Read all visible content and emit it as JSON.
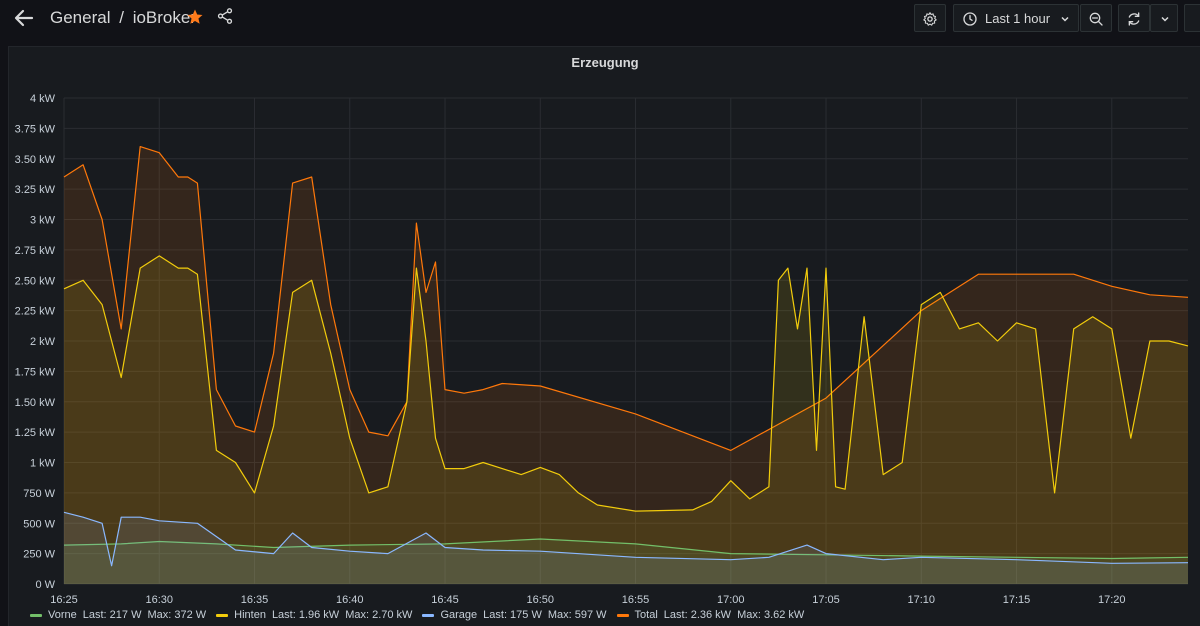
{
  "header": {
    "folder": "General",
    "separator": "/",
    "dashboard_title": "ioBroker",
    "time_range_label": "Last 1 hour",
    "icons": {
      "back": "arrow-left-icon",
      "star": "star-icon",
      "share": "share-icon",
      "settings": "gear-icon",
      "clock": "clock-icon",
      "chevron": "chevron-down-icon",
      "zoom_out": "zoom-out-icon",
      "refresh": "refresh-icon",
      "refresh_menu": "chevron-down-icon"
    },
    "star_color": "#ff7a1a"
  },
  "panel": {
    "title": "Erzeugung"
  },
  "legend": [
    {
      "name": "Vorne",
      "last": "Last: 217 W",
      "max": "Max: 372 W",
      "color": "#73bf69"
    },
    {
      "name": "Hinten",
      "last": "Last: 1.96 kW",
      "max": "Max: 2.70 kW",
      "color": "#f2cc0c"
    },
    {
      "name": "Garage",
      "last": "Last: 175 W",
      "max": "Max: 597 W",
      "color": "#8ab8ff"
    },
    {
      "name": "Total",
      "last": "Last: 2.36 kW",
      "max": "Max: 3.62 kW",
      "color": "#ff780a"
    }
  ],
  "chart_data": {
    "type": "area",
    "title": "Erzeugung",
    "y_tick_labels": [
      "0 W",
      "250 W",
      "500 W",
      "750 W",
      "1 kW",
      "1.25 kW",
      "1.50 kW",
      "1.75 kW",
      "2 kW",
      "2.25 kW",
      "2.50 kW",
      "2.75 kW",
      "3 kW",
      "3.25 kW",
      "3.50 kW",
      "3.75 kW",
      "4 kW"
    ],
    "ylim": [
      0,
      4
    ],
    "y_unit": "kW",
    "x_tick_labels": [
      "16:25",
      "16:30",
      "16:35",
      "16:40",
      "16:45",
      "16:50",
      "16:55",
      "17:00",
      "17:05",
      "17:10",
      "17:15",
      "17:20"
    ],
    "x_range": [
      "16:25",
      "17:24"
    ],
    "grid": true,
    "legend_position": "bottom",
    "series": [
      {
        "name": "Vorne",
        "color": "#73bf69",
        "x": [
          "16:25",
          "16:28",
          "16:30",
          "16:33",
          "16:36",
          "16:40",
          "16:45",
          "16:50",
          "16:55",
          "17:00",
          "17:05",
          "17:10",
          "17:15",
          "17:20",
          "17:24"
        ],
        "y": [
          0.32,
          0.33,
          0.35,
          0.33,
          0.3,
          0.32,
          0.33,
          0.37,
          0.33,
          0.25,
          0.24,
          0.23,
          0.22,
          0.21,
          0.22
        ]
      },
      {
        "name": "Hinten",
        "color": "#f2cc0c",
        "x": [
          "16:25",
          "16:26",
          "16:27",
          "16:28",
          "16:29",
          "16:30",
          "16:31",
          "16:31.5",
          "16:32",
          "16:33",
          "16:34",
          "16:35",
          "16:36",
          "16:37",
          "16:38",
          "16:39",
          "16:40",
          "16:41",
          "16:42",
          "16:43",
          "16:43.5",
          "16:44",
          "16:44.5",
          "16:45",
          "16:46",
          "16:47",
          "16:48",
          "16:49",
          "16:50",
          "16:51",
          "16:52",
          "16:53",
          "16:55",
          "16:58",
          "16:59",
          "17:00",
          "17:01",
          "17:02",
          "17:02.5",
          "17:03",
          "17:03.5",
          "17:04",
          "17:04.5",
          "17:05",
          "17:05.5",
          "17:06",
          "17:07",
          "17:08",
          "17:09",
          "17:10",
          "17:11",
          "17:12",
          "17:13",
          "17:14",
          "17:15",
          "17:16",
          "17:17",
          "17:18",
          "17:19",
          "17:20",
          "17:21",
          "17:22",
          "17:23",
          "17:24"
        ],
        "y": [
          2.43,
          2.5,
          2.3,
          1.7,
          2.6,
          2.7,
          2.6,
          2.6,
          2.55,
          1.1,
          1.0,
          0.75,
          1.3,
          2.4,
          2.5,
          1.9,
          1.2,
          0.75,
          0.8,
          1.5,
          2.6,
          2.0,
          1.2,
          0.95,
          0.95,
          1.0,
          0.95,
          0.9,
          0.96,
          0.9,
          0.75,
          0.65,
          0.6,
          0.61,
          0.68,
          0.85,
          0.7,
          0.8,
          2.5,
          2.6,
          2.1,
          2.6,
          1.1,
          2.6,
          0.8,
          0.78,
          2.2,
          0.9,
          1.0,
          2.3,
          2.4,
          2.1,
          2.15,
          2.0,
          2.15,
          2.1,
          0.75,
          2.1,
          2.2,
          2.1,
          1.2,
          2.0,
          2.0,
          1.96
        ]
      },
      {
        "name": "Garage",
        "color": "#8ab8ff",
        "x": [
          "16:25",
          "16:26",
          "16:27",
          "16:27.5",
          "16:28",
          "16:29",
          "16:30",
          "16:32",
          "16:34",
          "16:36",
          "16:37",
          "16:38",
          "16:40",
          "16:42",
          "16:44",
          "16:45",
          "16:47",
          "16:50",
          "16:55",
          "17:00",
          "17:02",
          "17:04",
          "17:05",
          "17:08",
          "17:10",
          "17:15",
          "17:20",
          "17:24"
        ],
        "y": [
          0.59,
          0.55,
          0.5,
          0.15,
          0.55,
          0.55,
          0.52,
          0.5,
          0.28,
          0.25,
          0.42,
          0.3,
          0.27,
          0.25,
          0.42,
          0.3,
          0.28,
          0.27,
          0.22,
          0.2,
          0.22,
          0.32,
          0.25,
          0.2,
          0.22,
          0.2,
          0.17,
          0.175
        ]
      },
      {
        "name": "Total",
        "color": "#ff780a",
        "x": [
          "16:25",
          "16:26",
          "16:27",
          "16:28",
          "16:29",
          "16:30",
          "16:31",
          "16:31.5",
          "16:32",
          "16:33",
          "16:34",
          "16:35",
          "16:36",
          "16:37",
          "16:38",
          "16:39",
          "16:40",
          "16:41",
          "16:42",
          "16:43",
          "16:43.5",
          "16:44",
          "16:44.5",
          "16:45",
          "16:46",
          "16:47",
          "16:48",
          "16:50",
          "16:55",
          "17:00",
          "17:05",
          "17:10",
          "17:13",
          "17:15",
          "17:18",
          "17:20",
          "17:22",
          "17:24"
        ],
        "y": [
          3.35,
          3.45,
          3.0,
          2.1,
          3.6,
          3.55,
          3.35,
          3.35,
          3.3,
          1.6,
          1.3,
          1.25,
          1.9,
          3.3,
          3.35,
          2.3,
          1.6,
          1.25,
          1.22,
          1.5,
          2.97,
          2.4,
          2.65,
          1.6,
          1.57,
          1.6,
          1.65,
          1.63,
          1.4,
          1.1,
          1.53,
          2.25,
          2.55,
          2.55,
          2.55,
          2.45,
          2.38,
          2.36
        ]
      }
    ]
  }
}
